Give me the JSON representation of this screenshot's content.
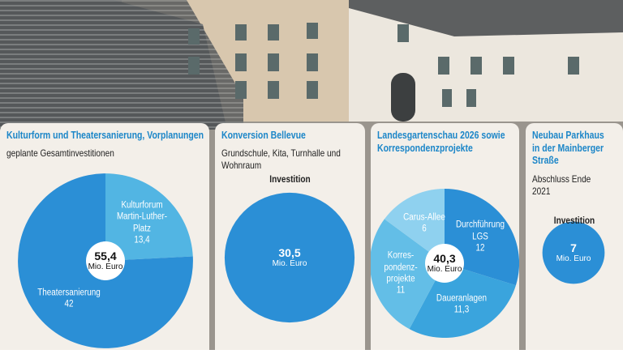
{
  "chart_data": [
    {
      "type": "pie",
      "title": "Kulturform und Theatersanierung, Vorplanungen",
      "subtitle": "geplante Gesamtinvestitionen",
      "categories": [
        "Kulturforum\nMartin-Luther-Platz",
        "Theatersanierung"
      ],
      "values": [
        13.4,
        42
      ],
      "value_labels": [
        "13,4",
        "42"
      ],
      "colors": [
        "#52b5e3",
        "#2b8fd6"
      ],
      "total": {
        "value": 55.4,
        "label": "55,4"
      },
      "unit": "Mio. Euro",
      "center_disc": true
    },
    {
      "type": "pie",
      "title": "Konversion Bellevue",
      "subtitle": "Grundschule, Kita, Turnhalle und Wohnraum",
      "heading": "Investition",
      "values": [
        30.5
      ],
      "value_labels": [
        "30,5"
      ],
      "colors": [
        "#2b8fd6"
      ],
      "unit": "Mio. Euro",
      "center_disc": false
    },
    {
      "type": "pie",
      "title": "Landesgartenschau 2026 sowie Korrespondenzprojekte",
      "categories": [
        "Durchführung\nLGS",
        "Daueranlagen",
        "Korres-\npondenz-\nprojekte",
        "Carus-Allee"
      ],
      "values": [
        12,
        11.3,
        11,
        6
      ],
      "value_labels": [
        "12",
        "11,3",
        "11",
        "6"
      ],
      "colors": [
        "#2b8fd6",
        "#3aa4dd",
        "#63bee7",
        "#8fd1ef"
      ],
      "total": {
        "value": 40.3,
        "label": "40,3"
      },
      "unit": "Mio. Euro",
      "center_disc": true
    },
    {
      "type": "pie",
      "title": "Neubau Parkhaus in der Mainberger Straße",
      "subtitle": "Abschluss Ende 2021",
      "heading": "Investition",
      "values": [
        7
      ],
      "value_labels": [
        "7"
      ],
      "colors": [
        "#2b8fd6"
      ],
      "unit": "Mio. Euro",
      "center_disc": false
    }
  ]
}
